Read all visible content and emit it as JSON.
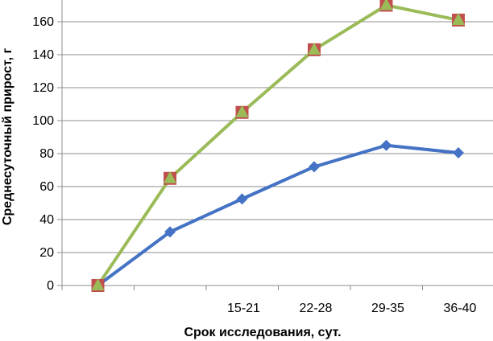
{
  "chart_data": {
    "type": "line",
    "categories": [
      "",
      "",
      "15-21",
      "22-28",
      "29-35",
      "36-40"
    ],
    "xlabel": "Срок исследования, сут.",
    "ylabel": "Среднесуточный прирост, г",
    "ylim": [
      0,
      170
    ],
    "yticks": [
      0,
      20,
      40,
      60,
      80,
      100,
      120,
      140,
      160
    ],
    "grid": true,
    "legend": "none",
    "series": [
      {
        "color": "#4472C4",
        "marker": "diamond",
        "values": [
          0,
          32.5,
          52.5,
          72,
          85,
          80.5
        ]
      },
      {
        "color": "#9BBB59",
        "marker": "square-triangle",
        "marker_colors": [
          "#C0504D",
          "#9BBB59"
        ],
        "values": [
          0,
          65,
          105,
          143,
          170,
          161
        ]
      }
    ]
  }
}
